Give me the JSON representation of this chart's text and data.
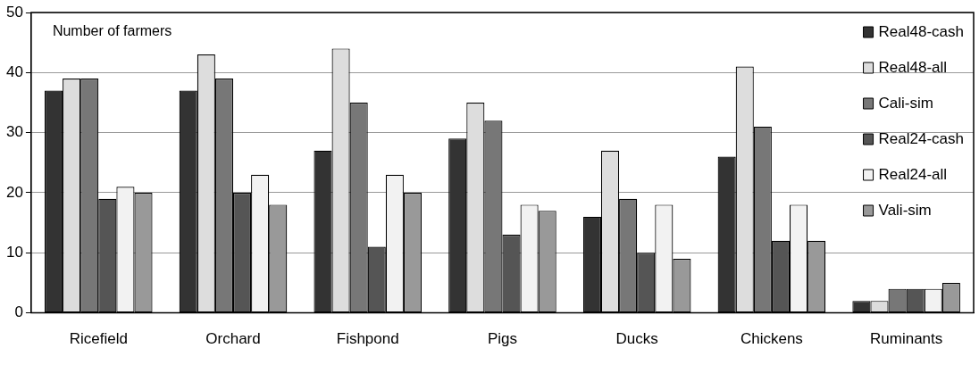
{
  "chart_data": {
    "type": "bar",
    "ylabel": "Number of farmers",
    "categories": [
      "Ricefield",
      "Orchard",
      "Fishpond",
      "Pigs",
      "Ducks",
      "Chickens",
      "Ruminants"
    ],
    "series": [
      {
        "name": "Real48-cash",
        "color": "#333333",
        "values": [
          37,
          37,
          27,
          29,
          16,
          26,
          2
        ]
      },
      {
        "name": "Real48-all",
        "color": "#dddddd",
        "values": [
          39,
          43,
          44,
          35,
          27,
          41,
          2
        ]
      },
      {
        "name": "Cali-sim",
        "color": "#777777",
        "values": [
          39,
          39,
          35,
          32,
          19,
          31,
          4
        ]
      },
      {
        "name": "Real24-cash",
        "color": "#555555",
        "values": [
          19,
          20,
          11,
          13,
          10,
          12,
          4
        ]
      },
      {
        "name": "Real24-all",
        "color": "#f2f2f2",
        "values": [
          21,
          23,
          23,
          18,
          18,
          18,
          4
        ]
      },
      {
        "name": "Vali-sim",
        "color": "#999999",
        "values": [
          20,
          18,
          20,
          17,
          9,
          12,
          5
        ]
      }
    ],
    "ylim": [
      0,
      50
    ],
    "yticks": [
      0,
      10,
      20,
      30,
      40,
      50
    ],
    "grid": "y",
    "legend": "top right"
  }
}
